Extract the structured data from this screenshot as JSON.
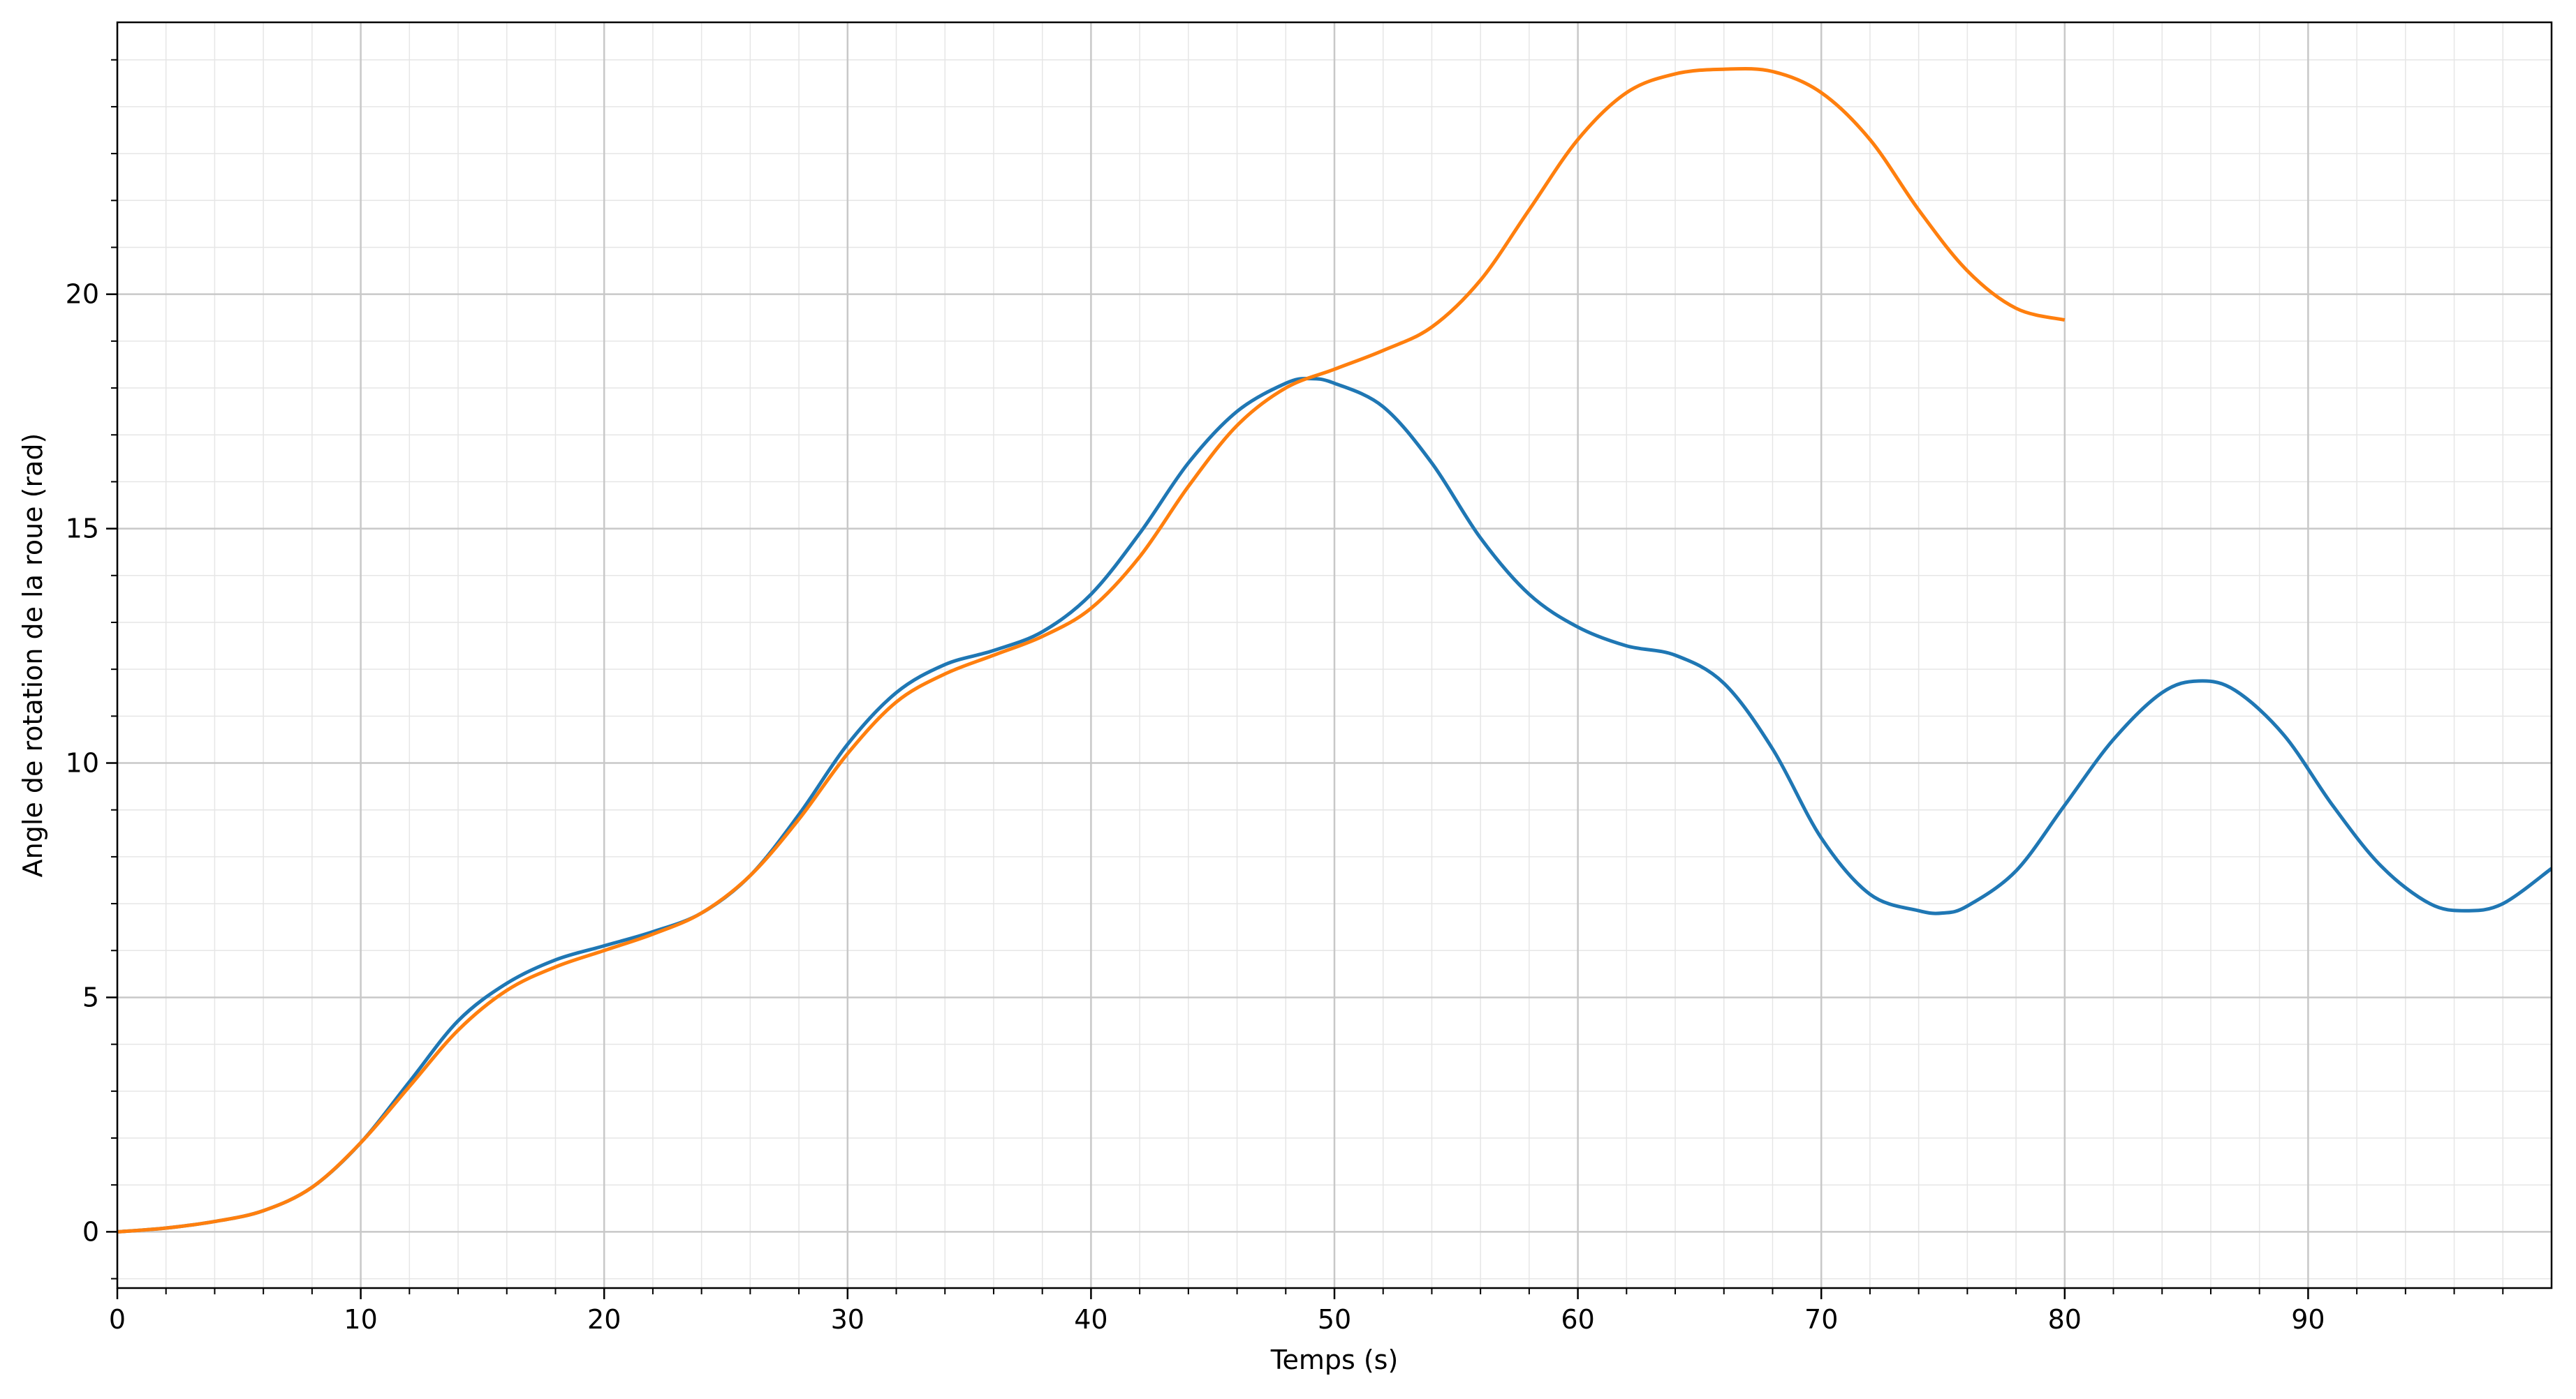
{
  "chart_data": {
    "type": "line",
    "title": "",
    "xlabel": "Temps (s)",
    "ylabel": "Angle de rotation de la roue (rad)",
    "xlim": [
      0,
      100
    ],
    "ylim": [
      -1.2,
      25.8
    ],
    "x_ticks": [
      0,
      10,
      20,
      30,
      40,
      50,
      60,
      70,
      80,
      90
    ],
    "y_ticks": [
      0,
      5,
      10,
      15,
      20
    ],
    "x_tick_labels": [
      "0",
      "10",
      "20",
      "30",
      "40",
      "50",
      "60",
      "70",
      "80",
      "90"
    ],
    "y_tick_labels": [
      "0",
      "5",
      "10",
      "15",
      "20"
    ],
    "x_minor_step": 2,
    "y_minor_step": 1,
    "grid": true,
    "legend": "none",
    "series": [
      {
        "color": "#1f77b4",
        "x": [
          0,
          2,
          4,
          6,
          8,
          10,
          12,
          14,
          16,
          18,
          20,
          22,
          24,
          26,
          28,
          30,
          32,
          34,
          36,
          38,
          40,
          42,
          44,
          46,
          48,
          49,
          50,
          52,
          54,
          56,
          58,
          60,
          62,
          64,
          66,
          68,
          70,
          72,
          74,
          75,
          76,
          78,
          80,
          82,
          84,
          85.5,
          87,
          89,
          91,
          93,
          95,
          96.5,
          98,
          100
        ],
        "y": [
          0,
          0.08,
          0.22,
          0.45,
          0.95,
          1.9,
          3.2,
          4.5,
          5.3,
          5.8,
          6.1,
          6.4,
          6.8,
          7.6,
          8.9,
          10.4,
          11.5,
          12.1,
          12.4,
          12.8,
          13.6,
          14.9,
          16.4,
          17.5,
          18.1,
          18.2,
          18.1,
          17.6,
          16.4,
          14.8,
          13.6,
          12.9,
          12.5,
          12.3,
          11.7,
          10.3,
          8.4,
          7.2,
          6.85,
          6.8,
          6.95,
          7.7,
          9.1,
          10.5,
          11.5,
          11.75,
          11.55,
          10.6,
          9.1,
          7.8,
          7.0,
          6.85,
          7.0,
          7.75
        ]
      },
      {
        "color": "#ff7f0e",
        "x": [
          0,
          2,
          4,
          6,
          8,
          10,
          12,
          14,
          16,
          18,
          20,
          22,
          24,
          26,
          28,
          30,
          32,
          34,
          36,
          38,
          40,
          42,
          44,
          46,
          48,
          50,
          52,
          54,
          56,
          58,
          60,
          62,
          64,
          66,
          68,
          70,
          72,
          74,
          76,
          78,
          80
        ],
        "y": [
          0,
          0.08,
          0.22,
          0.45,
          0.95,
          1.9,
          3.1,
          4.3,
          5.15,
          5.65,
          6.0,
          6.35,
          6.8,
          7.6,
          8.8,
          10.2,
          11.3,
          11.9,
          12.3,
          12.7,
          13.3,
          14.4,
          15.9,
          17.2,
          18.0,
          18.4,
          18.8,
          19.3,
          20.3,
          21.8,
          23.3,
          24.3,
          24.7,
          24.8,
          24.75,
          24.3,
          23.3,
          21.8,
          20.5,
          19.7,
          19.45
        ]
      }
    ]
  }
}
